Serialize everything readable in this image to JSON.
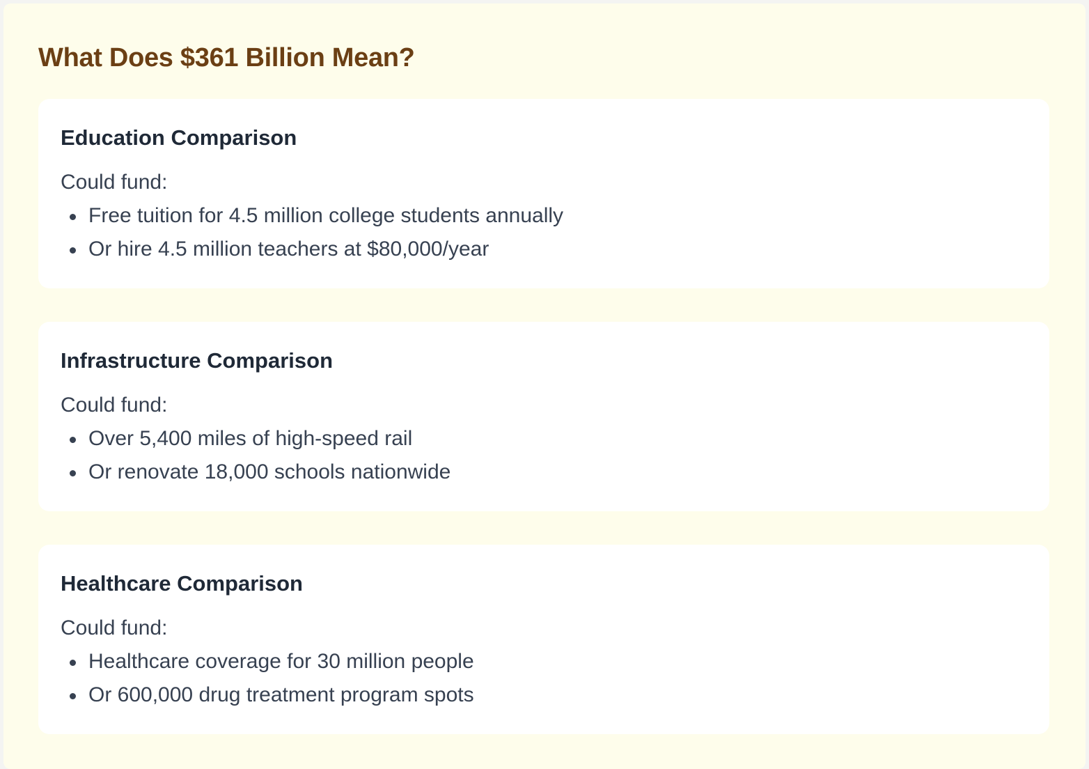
{
  "title": "What Does $361 Billion Mean?",
  "cards": [
    {
      "title": "Education Comparison",
      "intro": "Could fund:",
      "items": [
        "Free tuition for 4.5 million college students annually",
        "Or hire 4.5 million teachers at $80,000/year"
      ]
    },
    {
      "title": "Infrastructure Comparison",
      "intro": "Could fund:",
      "items": [
        "Over 5,400 miles of high-speed rail",
        "Or renovate 18,000 schools nationwide"
      ]
    },
    {
      "title": "Healthcare Comparison",
      "intro": "Could fund:",
      "items": [
        "Healthcare coverage for 30 million people",
        "Or 600,000 drug treatment program spots"
      ]
    }
  ]
}
